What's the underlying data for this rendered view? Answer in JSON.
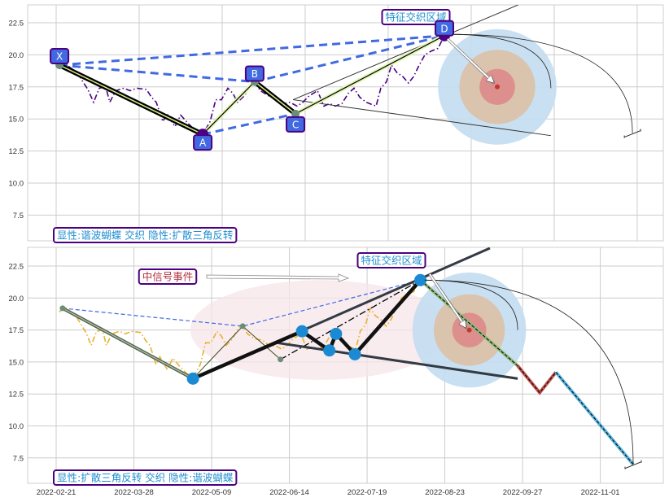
{
  "chart_data": {
    "type": "line",
    "x_unit": "days since 2022-02-21",
    "xticks": {
      "labels": [
        "2022-02-21",
        "2022-03-28",
        "2022-05-09",
        "2022-06-14",
        "2022-07-19",
        "2022-08-23",
        "2022-09-27",
        "2022-11-01"
      ],
      "days": [
        0,
        35,
        70,
        105,
        140,
        175,
        210,
        245
      ]
    },
    "yticks": [
      "7.5",
      "10.0",
      "12.5",
      "15.0",
      "17.5",
      "20.0",
      "22.5"
    ],
    "ytick_values": [
      7.5,
      10,
      12.5,
      15,
      17.5,
      20,
      22.5
    ],
    "ylim": [
      5.5,
      23.9
    ],
    "grid": true,
    "price": [
      [
        1.4,
        18.9
      ],
      [
        3.8,
        19.3
      ],
      [
        8.9,
        18.6
      ],
      [
        13.4,
        17.3
      ],
      [
        15.8,
        16.3
      ],
      [
        18.2,
        17.4
      ],
      [
        20.9,
        17.5
      ],
      [
        22.6,
        16.3
      ],
      [
        25.1,
        17.2
      ],
      [
        28.5,
        17.4
      ],
      [
        31.2,
        17.2
      ],
      [
        34.0,
        17.4
      ],
      [
        38.1,
        17.3
      ],
      [
        40.2,
        16.7
      ],
      [
        42.2,
        16.3
      ],
      [
        45.0,
        14.8
      ],
      [
        46.7,
        15.4
      ],
      [
        50.1,
        14.4
      ],
      [
        52.5,
        15.3
      ],
      [
        55.9,
        14.6
      ],
      [
        58.7,
        14.1
      ],
      [
        61.8,
        13.8
      ],
      [
        64.9,
        14.8
      ],
      [
        67.3,
        16.5
      ],
      [
        69.7,
        16.5
      ],
      [
        72.4,
        17.4
      ],
      [
        74.5,
        17.0
      ],
      [
        76.5,
        16.3
      ],
      [
        79.3,
        16.8
      ],
      [
        82.0,
        17.6
      ],
      [
        83.7,
        17.9
      ],
      [
        86.1,
        17.2
      ],
      [
        89.6,
        16.8
      ],
      [
        93.0,
        16.7
      ],
      [
        96.4,
        16.2
      ],
      [
        98.5,
        16.3
      ],
      [
        101.6,
        16.0
      ],
      [
        104.0,
        16.3
      ],
      [
        106.7,
        16.8
      ],
      [
        110.2,
        17.2
      ],
      [
        112.9,
        16.0
      ],
      [
        115.3,
        16.2
      ],
      [
        117.7,
        16.0
      ],
      [
        120.5,
        16.2
      ],
      [
        123.2,
        17.0
      ],
      [
        125.6,
        17.4
      ],
      [
        128.0,
        16.7
      ],
      [
        130.7,
        16.3
      ],
      [
        134.9,
        16.0
      ],
      [
        136.9,
        17.4
      ],
      [
        139.3,
        17.9
      ],
      [
        141.4,
        19.2
      ],
      [
        143.8,
        18.6
      ],
      [
        146.2,
        18.3
      ],
      [
        148.6,
        17.8
      ],
      [
        150.7,
        18.3
      ],
      [
        153.1,
        19.2
      ],
      [
        155.5,
        20.0
      ],
      [
        158.2,
        20.3
      ],
      [
        161.0,
        20.5
      ],
      [
        163.7,
        21.5
      ]
    ],
    "panels": [
      {
        "id": "top",
        "price_color": "#4B0082",
        "pivots": {
          "X": [
            1.4,
            19.2
          ],
          "A": [
            61.8,
            13.8
          ],
          "B": [
            83.7,
            17.9
          ],
          "C": [
            100.9,
            15.4
          ],
          "D": [
            163.7,
            21.5
          ]
        },
        "pivot_labels": [
          "X",
          "A",
          "B",
          "C",
          "D"
        ],
        "blue_dashed": [
          [
            "X",
            "D"
          ],
          [
            "X",
            "B"
          ],
          [
            "B",
            "D"
          ],
          [
            "A",
            "C"
          ]
        ],
        "triangle": {
          "apex": [
            99.9,
            16.5
          ],
          "upper_end": [
            194.9,
            23.9
          ],
          "lower_end": [
            208.6,
            13.7
          ]
        },
        "target": {
          "center": [
            186,
            17.5
          ],
          "radii_days": [
            25,
            16,
            7.5
          ],
          "radii_value": [
            4.5,
            2.9,
            1.4
          ]
        },
        "arcs": {
          "start": [
            166,
            21.6
          ],
          "small_end": [
            208.6,
            17.4
          ],
          "large_end": [
            243,
            13.9
          ]
        },
        "annotation": "特征交织区域",
        "caption": "显性:谐波蝴蝶 交织 隐性:扩散三角反转"
      },
      {
        "id": "bottom",
        "price_color": "#e8b030",
        "pivots": {
          "X": [
            2.9,
            19.2
          ],
          "A": [
            61.6,
            13.7
          ],
          "B": [
            84,
            17.8
          ],
          "C": [
            101,
            15.2
          ],
          "D": [
            164,
            21.4
          ]
        },
        "swings": [
          [
            61.6,
            13.7
          ],
          [
            110.7,
            17.4
          ],
          [
            123,
            15.9
          ],
          [
            126,
            17.2
          ],
          [
            134.5,
            15.6
          ],
          [
            164,
            21.4
          ]
        ],
        "upper_line": [
          [
            61.6,
            13.7
          ],
          [
            195.3,
            23.9
          ]
        ],
        "lower_line": [
          [
            99.3,
            16.5
          ],
          [
            207.8,
            13.7
          ]
        ],
        "projection": {
          "green": [
            [
              164,
              21.4
            ],
            [
              207.8,
              14.7
            ]
          ],
          "red": [
            [
              207.8,
              14.7
            ],
            [
              217.7,
              12.6
            ],
            [
              225,
              14.2
            ]
          ],
          "blue": [
            [
              225,
              14.2
            ],
            [
              259.8,
              7.0
            ]
          ]
        },
        "target": {
          "center": [
            186,
            17.5
          ],
          "radii_days": [
            25.6,
            16,
            7.7
          ],
          "radii_value": [
            4.5,
            2.8,
            1.35
          ]
        },
        "ellipse": {
          "center": [
            119,
            17.5
          ],
          "r_days": 58.6,
          "r_value": 3.9
        },
        "arcs": {
          "start": [
            166,
            21.4
          ],
          "small_end": [
            207.8,
            17.5
          ],
          "large_end": [
            259.8,
            7.0
          ]
        },
        "signal_annotation": "中信号事件",
        "annotation": "特征交织区域",
        "caption": "显性:扩散三角反转 交织 隐性:谐波蝴蝶"
      }
    ]
  }
}
